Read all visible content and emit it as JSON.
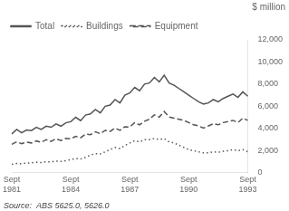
{
  "chart_data": {
    "type": "line",
    "ylabel": "$ million",
    "annotations": [
      "Source:  ABS 5625.0, 5626.0"
    ],
    "categories": [
      "Sept\n1981",
      null,
      null,
      null,
      null,
      null,
      null,
      null,
      null,
      null,
      null,
      null,
      "Sept\n1984",
      null,
      null,
      null,
      null,
      null,
      null,
      null,
      null,
      null,
      null,
      null,
      "Sept\n1987",
      null,
      null,
      null,
      null,
      null,
      null,
      null,
      null,
      null,
      null,
      null,
      "Sept\n1990",
      null,
      null,
      null,
      null,
      null,
      null,
      null,
      null,
      null,
      null,
      null,
      "Sept\n1993"
    ],
    "series": [
      {
        "name": "Total",
        "color": "#555555",
        "line_style": "solid",
        "values": [
          3500,
          3900,
          3600,
          3850,
          3800,
          4100,
          3900,
          4200,
          4100,
          4400,
          4200,
          4500,
          4600,
          5000,
          4700,
          5200,
          5300,
          5700,
          5400,
          6000,
          6100,
          6600,
          6300,
          7000,
          7200,
          7700,
          7400,
          8000,
          8100,
          8600,
          8200,
          8800,
          8100,
          7900,
          7600,
          7300,
          7000,
          6700,
          6400,
          6200,
          6300,
          6600,
          6400,
          6700,
          6900,
          7100,
          6800,
          7300,
          6900
        ]
      },
      {
        "name": "Buildings",
        "color": "#555555",
        "line_style": "dotted",
        "values": [
          750,
          820,
          790,
          860,
          880,
          940,
          910,
          970,
          980,
          1040,
          1010,
          1080,
          1180,
          1280,
          1230,
          1380,
          1580,
          1720,
          1680,
          1880,
          2080,
          2280,
          2180,
          2450,
          2680,
          2880,
          2780,
          2980,
          2980,
          3080,
          2980,
          3080,
          2780,
          2680,
          2480,
          2280,
          2080,
          1980,
          1880,
          1780,
          1780,
          1880,
          1830,
          1930,
          1980,
          2080,
          1980,
          2080,
          1880
        ]
      },
      {
        "name": "Equipment",
        "color": "#555555",
        "line_style": "dashed",
        "values": [
          2550,
          2780,
          2620,
          2750,
          2680,
          2860,
          2750,
          2980,
          2820,
          3060,
          2900,
          3100,
          3050,
          3280,
          3150,
          3480,
          3430,
          3680,
          3520,
          3820,
          3720,
          4020,
          3820,
          4150,
          4120,
          4520,
          4320,
          4650,
          4820,
          5220,
          5020,
          5520,
          5020,
          4920,
          4820,
          4720,
          4520,
          4320,
          4220,
          4020,
          4220,
          4420,
          4320,
          4520,
          4620,
          4720,
          4520,
          4920,
          4720
        ]
      }
    ],
    "ylim": [
      0,
      12000
    ],
    "yticks": [
      0,
      {
        "value": 2000,
        "label": "2,000"
      },
      {
        "value": 4000,
        "label": "4,000"
      },
      {
        "value": 6000,
        "label": "6,000"
      },
      {
        "value": 8000,
        "label": "8,000"
      },
      {
        "value": 10000,
        "label": "10,000"
      },
      {
        "value": 12000,
        "label": "12,000"
      }
    ],
    "grid": false,
    "legend": "upper left"
  }
}
